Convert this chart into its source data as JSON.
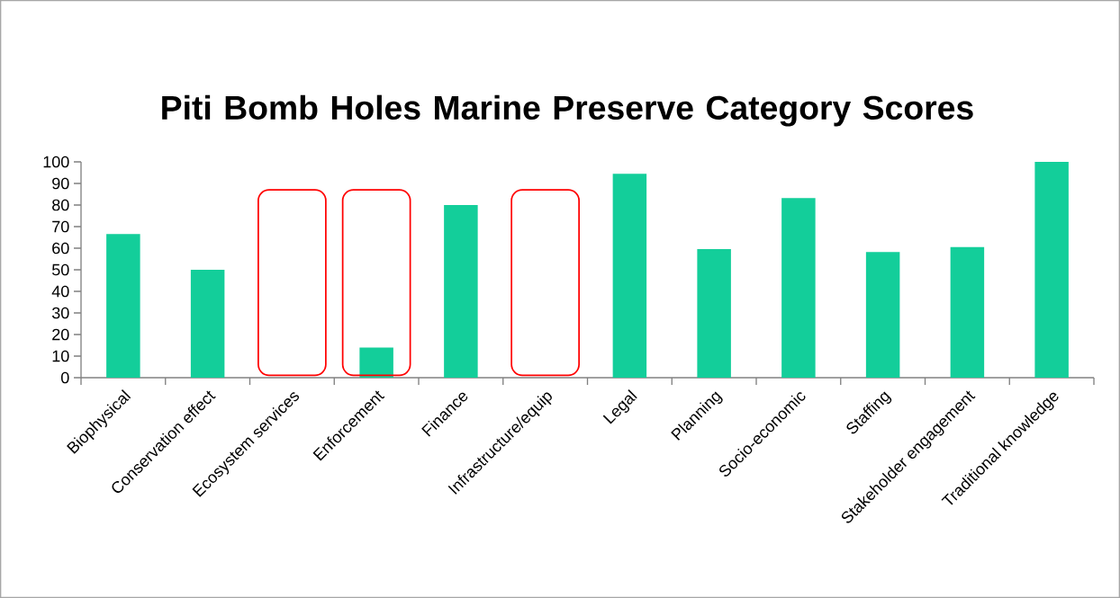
{
  "chart_data": {
    "type": "bar",
    "title": "Piti Bomb Holes Marine Preserve Category Scores",
    "categories": [
      "Biophysical",
      "Conservation effect",
      "Ecosystem services",
      "Enforcement",
      "Finance",
      "Infrastructure/equip",
      "Legal",
      "Planning",
      "Socio-economic",
      "Staffing",
      "Stakeholder engagement",
      "Traditional knowledge"
    ],
    "values": [
      66.6,
      50,
      0,
      14,
      80,
      0,
      94.5,
      59.6,
      83.2,
      58.2,
      60.5,
      100
    ],
    "color": "#13ce9a",
    "ylim": [
      0,
      100
    ],
    "yticks": [
      0,
      10,
      20,
      30,
      40,
      50,
      60,
      70,
      80,
      90,
      100
    ]
  }
}
